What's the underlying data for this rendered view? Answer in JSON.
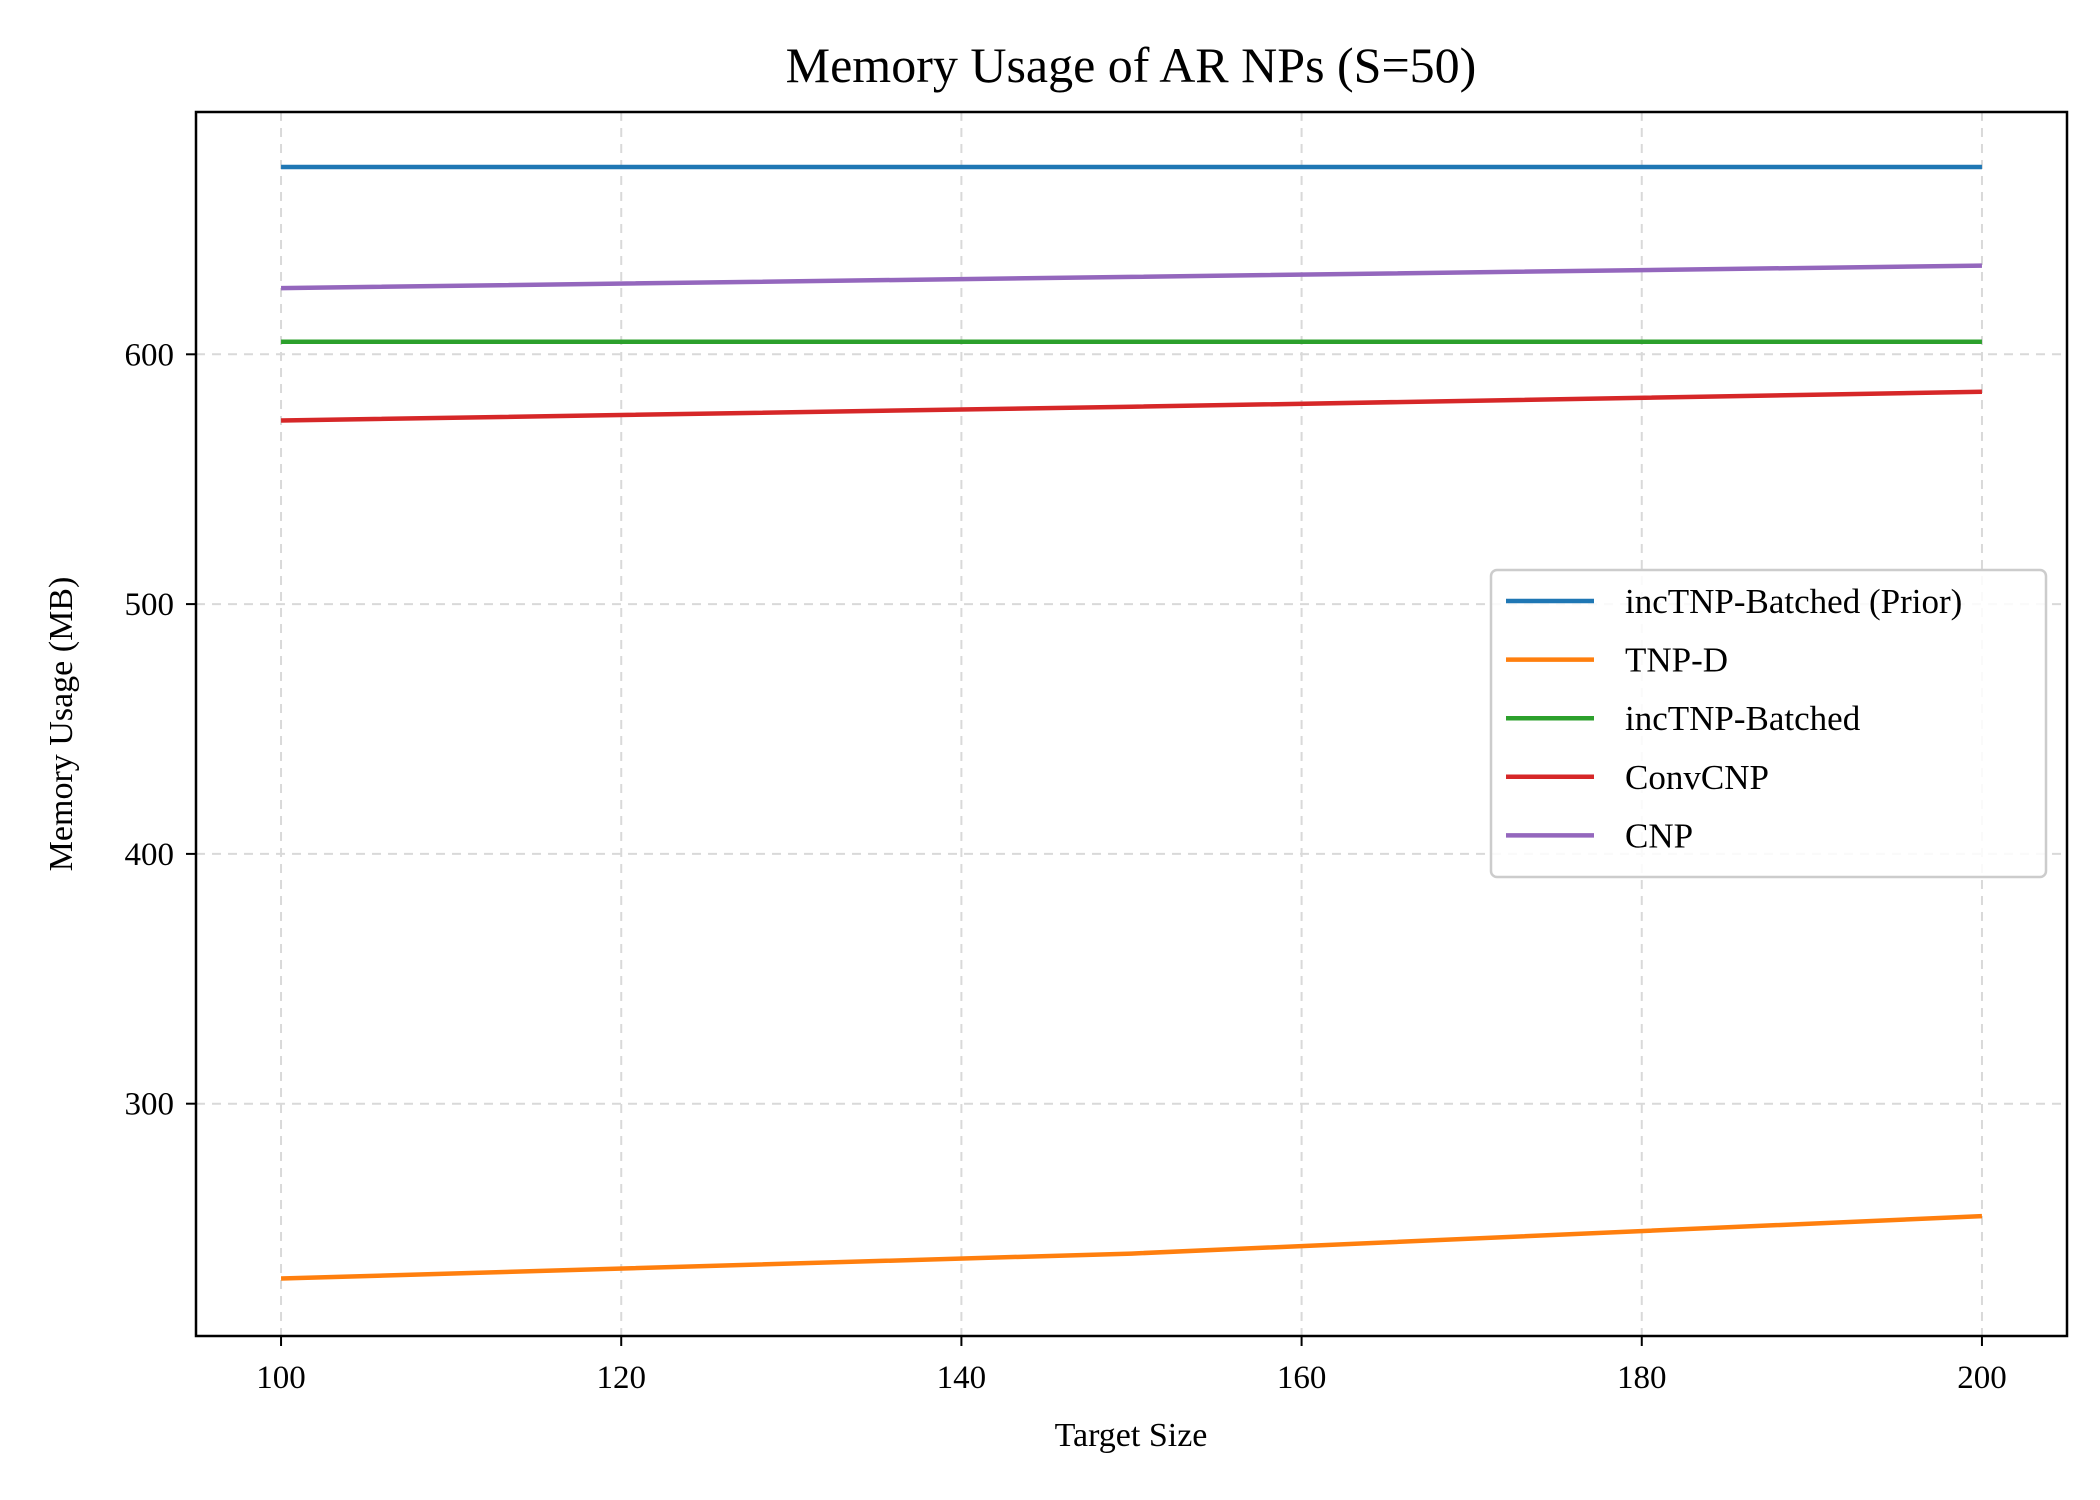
{
  "chart_data": {
    "type": "line",
    "title": "Memory Usage of AR NPs (S=50)",
    "xlabel": "Target Size",
    "ylabel": "Memory Usage (MB)",
    "xlim": [
      95,
      205
    ],
    "ylim": [
      207,
      697
    ],
    "xticks": [
      100,
      120,
      140,
      160,
      180,
      200
    ],
    "yticks": [
      300,
      400,
      500,
      600
    ],
    "grid": true,
    "legend_position": "center-right",
    "x": [
      100,
      150,
      200
    ],
    "series": [
      {
        "name": "incTNP-Batched (Prior)",
        "color": "#1f77b4",
        "values": [
          675,
          675,
          675
        ]
      },
      {
        "name": "TNP-D",
        "color": "#ff7f0e",
        "values": [
          230,
          240,
          255
        ]
      },
      {
        "name": "incTNP-Batched",
        "color": "#2ca02c",
        "values": [
          605,
          605,
          605
        ]
      },
      {
        "name": "ConvCNP",
        "color": "#d62728",
        "values": [
          573.5,
          579,
          585
        ]
      },
      {
        "name": "CNP",
        "color": "#9467bd",
        "values": [
          626.5,
          631,
          635.5
        ]
      }
    ]
  }
}
